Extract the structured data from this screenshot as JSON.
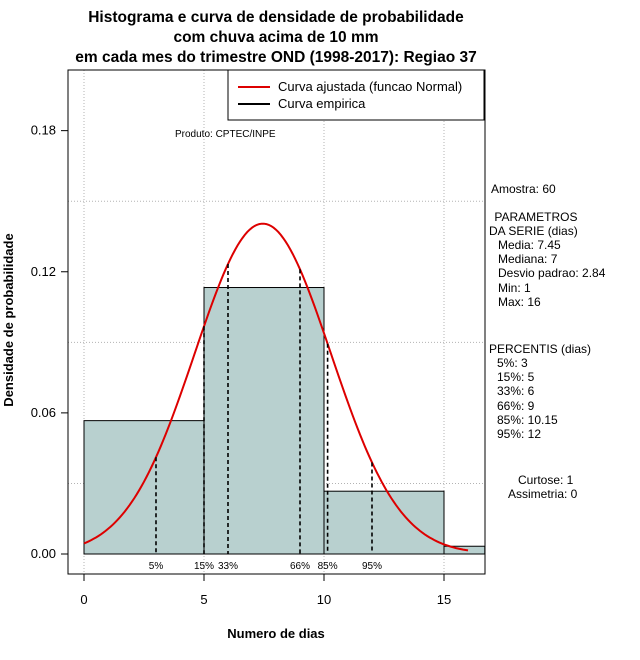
{
  "chart_data": {
    "type": "bar",
    "title": [
      "Histograma e curva de densidade de probabilidade",
      "com chuva acima de 10 mm",
      "em cada mes do trimestre OND (1998-2017): Regiao 37"
    ],
    "xlabel": "Numero de dias",
    "ylabel": "Densidade de probabilidade",
    "product": "Produto: CPTEC/INPE",
    "xlim": [
      0,
      16.7
    ],
    "ylim": [
      0,
      0.2
    ],
    "x_ticks": [
      0,
      5,
      10,
      15
    ],
    "y_ticks": [
      0.0,
      0.06,
      0.12,
      0.18
    ],
    "y_tick_labels": [
      "0.00",
      "0.06",
      "0.12",
      "0.18"
    ],
    "histogram": {
      "breaks": [
        0,
        5,
        10,
        15,
        16.7
      ],
      "density": [
        0.0567,
        0.1133,
        0.0267,
        0.0033
      ]
    },
    "fitted_curve": {
      "name": "Curva ajustada (funcao Normal)",
      "distribution": "normal",
      "mean": 7.45,
      "sd": 2.84,
      "x_range": [
        0,
        16
      ],
      "color": "#dd0000"
    },
    "empirical_curve": {
      "name": "Curva empirica",
      "color": "#000000"
    },
    "percentile_lines": [
      {
        "label": "5%",
        "x": 3
      },
      {
        "label": "15%",
        "x": 5
      },
      {
        "label": "33%",
        "x": 6
      },
      {
        "label": "66%",
        "x": 9
      },
      {
        "label": "85%",
        "x": 10.15
      },
      {
        "label": "95%",
        "x": 12
      }
    ],
    "colors": {
      "bar_fill": "#b8d0cf",
      "grid": "#b3b3b3"
    }
  },
  "stats": {
    "amostra": "Amostra: 60",
    "params_title": [
      " PARAMETROS",
      "DA SERIE (dias)"
    ],
    "params": [
      "Media: 7.45",
      "Mediana: 7",
      "Desvio padrao: 2.84",
      "Min: 1",
      "Max: 16"
    ],
    "percentis_title": "PERCENTIS (dias)",
    "percentis": [
      "5%: 3",
      "15%: 5",
      "33%: 6",
      "66%: 9",
      "85%: 10.15",
      "95%: 12"
    ],
    "curtose": "Curtose: 1",
    "assimetria": "Assimetria: 0"
  }
}
